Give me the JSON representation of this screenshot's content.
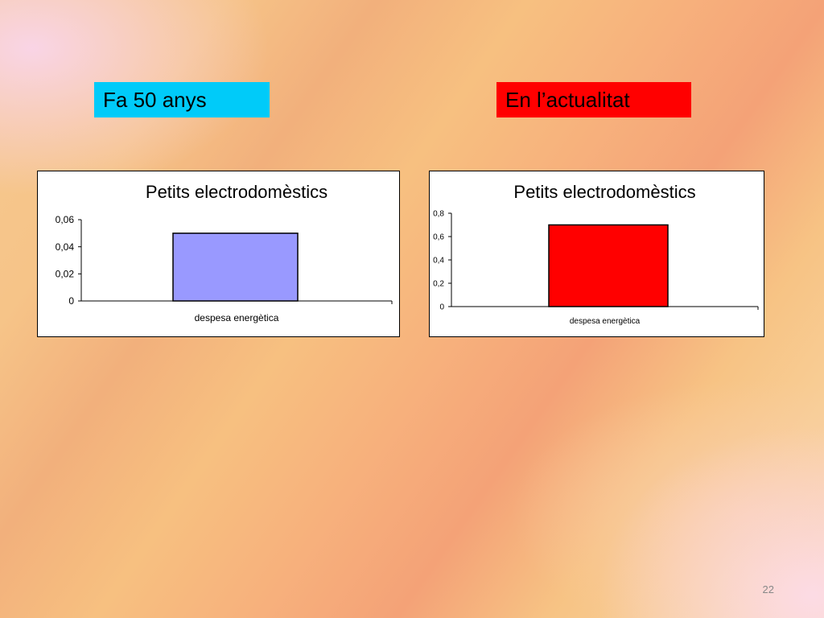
{
  "slide": {
    "left_label": "Fa 50 anys",
    "right_label": "En l’actualitat",
    "page_number": "22"
  },
  "colors": {
    "left_label_bg": "#00cbf9",
    "right_label_bg": "#ff0000",
    "left_bar": "#9999ff",
    "right_bar": "#ff0000"
  },
  "chart_data": [
    {
      "type": "bar",
      "title": "Petits electrodomèstics",
      "categories": [
        "despesa energètica"
      ],
      "values": [
        0.05
      ],
      "ylim": [
        0,
        0.06
      ],
      "yticks": [
        "0",
        "0,02",
        "0,04",
        "0,06"
      ],
      "ytick_values": [
        0,
        0.02,
        0.04,
        0.06
      ],
      "xlabel": "",
      "ylabel": "",
      "grid": false,
      "legend": "none",
      "bar_color": "#9999ff"
    },
    {
      "type": "bar",
      "title": "Petits electrodomèstics",
      "categories": [
        "despesa energètica"
      ],
      "values": [
        0.7
      ],
      "ylim": [
        0,
        0.8
      ],
      "yticks": [
        "0",
        "0,2",
        "0,4",
        "0,6",
        "0,8"
      ],
      "ytick_values": [
        0,
        0.2,
        0.4,
        0.6,
        0.8
      ],
      "xlabel": "",
      "ylabel": "",
      "grid": false,
      "legend": "none",
      "bar_color": "#ff0000"
    }
  ]
}
